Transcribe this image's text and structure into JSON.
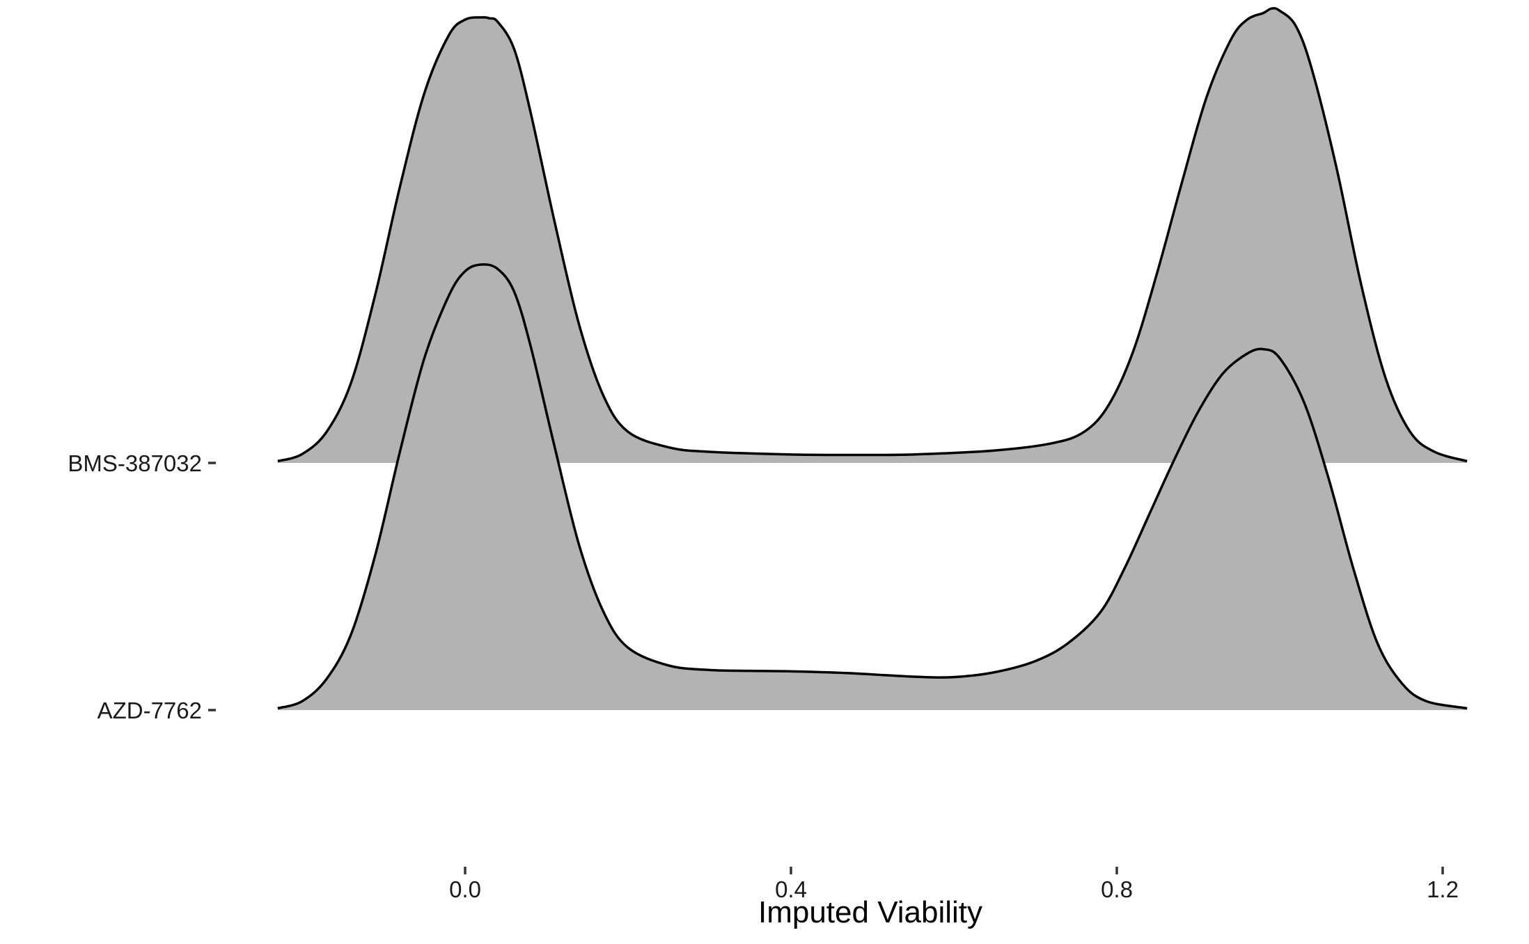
{
  "chart_data": {
    "type": "area",
    "subtype": "ridgeline-density",
    "xlabel": "Imputed Viability",
    "ylabel": "",
    "xlim": [
      -0.235,
      1.235
    ],
    "xticks": [
      0.0,
      0.4,
      0.8,
      1.2
    ],
    "xtick_labels": [
      "0.0",
      "0.4",
      "0.8",
      "1.2"
    ],
    "categories": [
      "BMS-387032",
      "AZD-7762"
    ],
    "fill_color": "#b3b3b3",
    "line_color": "#000000",
    "grid": false,
    "legend": "none",
    "series": [
      {
        "name": "BMS-387032",
        "x": [
          -0.23,
          -0.2,
          -0.17,
          -0.14,
          -0.11,
          -0.08,
          -0.05,
          -0.02,
          0.0,
          0.02,
          0.03,
          0.04,
          0.06,
          0.08,
          0.11,
          0.14,
          0.17,
          0.2,
          0.25,
          0.3,
          0.4,
          0.47,
          0.55,
          0.65,
          0.72,
          0.76,
          0.79,
          0.82,
          0.85,
          0.88,
          0.91,
          0.94,
          0.96,
          0.98,
          0.99,
          1.0,
          1.02,
          1.04,
          1.07,
          1.1,
          1.13,
          1.16,
          1.19,
          1.23
        ],
        "y": [
          0.004,
          0.02,
          0.07,
          0.18,
          0.38,
          0.62,
          0.83,
          0.96,
          0.995,
          1.0,
          0.998,
          0.99,
          0.93,
          0.79,
          0.54,
          0.31,
          0.15,
          0.07,
          0.035,
          0.025,
          0.019,
          0.018,
          0.019,
          0.028,
          0.044,
          0.07,
          0.13,
          0.25,
          0.43,
          0.63,
          0.82,
          0.95,
          0.995,
          1.01,
          1.02,
          1.015,
          0.98,
          0.88,
          0.66,
          0.4,
          0.19,
          0.07,
          0.025,
          0.004
        ]
      },
      {
        "name": "AZD-7762",
        "x": [
          -0.23,
          -0.2,
          -0.17,
          -0.14,
          -0.11,
          -0.08,
          -0.05,
          -0.02,
          0.0,
          0.02,
          0.04,
          0.06,
          0.08,
          0.11,
          0.14,
          0.17,
          0.2,
          0.25,
          0.3,
          0.35,
          0.4,
          0.47,
          0.55,
          0.6,
          0.65,
          0.7,
          0.74,
          0.78,
          0.81,
          0.84,
          0.87,
          0.9,
          0.93,
          0.96,
          0.98,
          1.0,
          1.03,
          1.06,
          1.09,
          1.12,
          1.15,
          1.18,
          1.23
        ],
        "y": [
          0.004,
          0.02,
          0.07,
          0.17,
          0.35,
          0.58,
          0.79,
          0.93,
          0.985,
          1.0,
          0.99,
          0.94,
          0.82,
          0.59,
          0.37,
          0.22,
          0.14,
          0.1,
          0.09,
          0.088,
          0.087,
          0.083,
          0.075,
          0.074,
          0.085,
          0.11,
          0.15,
          0.22,
          0.32,
          0.44,
          0.56,
          0.67,
          0.755,
          0.8,
          0.81,
          0.79,
          0.69,
          0.52,
          0.32,
          0.15,
          0.06,
          0.02,
          0.004
        ]
      }
    ]
  }
}
